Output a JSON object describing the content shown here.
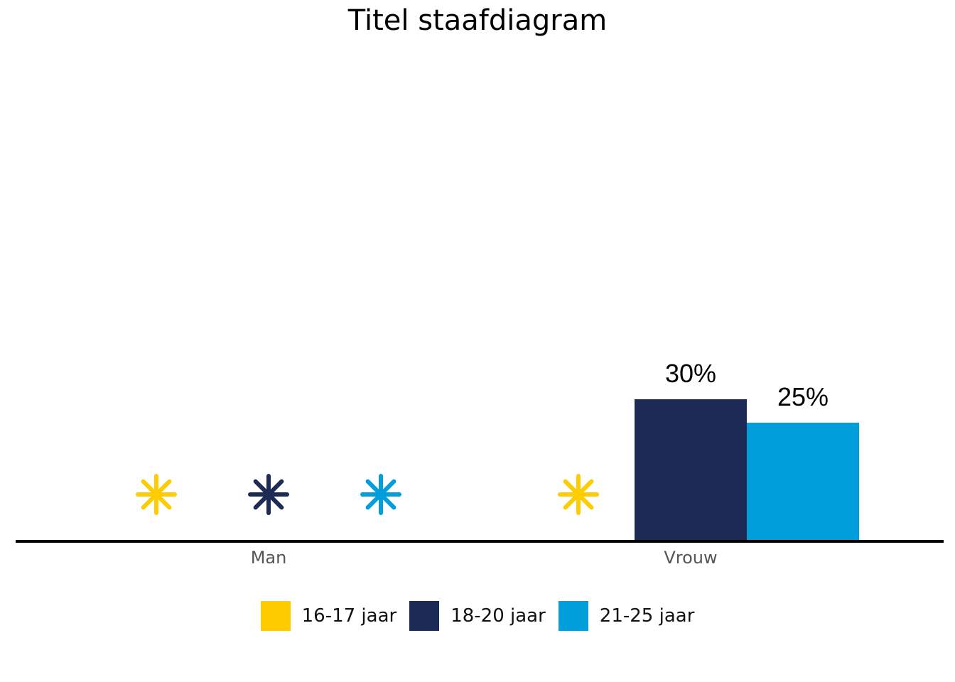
{
  "chart_data": {
    "type": "bar",
    "title": "Titel staafdiagram",
    "xlabel": "",
    "ylabel": "",
    "categories": [
      "Man",
      "Vrouw"
    ],
    "series": [
      {
        "name": "16-17 jaar",
        "color": "#FFCC00",
        "values": [
          null,
          null
        ]
      },
      {
        "name": "18-20 jaar",
        "color": "#1C2B55",
        "values": [
          null,
          30
        ]
      },
      {
        "name": "21-25 jaar",
        "color": "#009EDB",
        "values": [
          null,
          25
        ]
      }
    ],
    "data_labels": [
      {
        "category": "Vrouw",
        "series": "18-20 jaar",
        "text": "30%"
      },
      {
        "category": "Vrouw",
        "series": "21-25 jaar",
        "text": "25%"
      }
    ],
    "missing_marker": "asterisk",
    "ylim": [
      0,
      100
    ],
    "grid": false,
    "legend_position": "bottom"
  }
}
